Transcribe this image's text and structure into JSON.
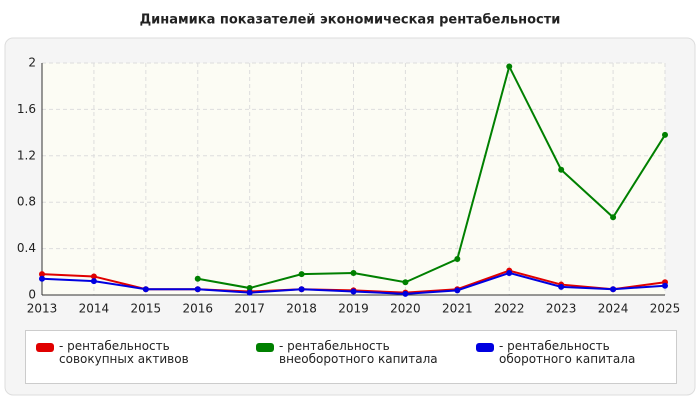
{
  "chart_data": {
    "type": "line",
    "title": "Динамика показателей экономическая рентабельности",
    "categories": [
      "2013",
      "2014",
      "2015",
      "2016",
      "2017",
      "2018",
      "2019",
      "2020",
      "2021",
      "2022",
      "2023",
      "2024",
      "2025"
    ],
    "series": [
      {
        "name": "- рентабельность совокупных активов",
        "color": "#e00000",
        "values": [
          0.18,
          0.16,
          0.05,
          0.05,
          0.03,
          0.05,
          0.04,
          0.02,
          0.05,
          0.21,
          0.09,
          0.05,
          0.11
        ]
      },
      {
        "name": "- рентабельность внеоборотного капитала",
        "color": "#008000",
        "values": [
          null,
          null,
          null,
          0.14,
          0.06,
          0.18,
          0.19,
          0.11,
          0.31,
          1.97,
          1.08,
          0.67,
          1.38
        ]
      },
      {
        "name": "- рентабельность оборотного капитала",
        "color": "#0000e0",
        "values": [
          0.14,
          0.12,
          0.05,
          0.05,
          0.02,
          0.05,
          0.03,
          0.01,
          0.04,
          0.19,
          0.07,
          0.05,
          0.08
        ]
      }
    ],
    "ylim": [
      0,
      2
    ],
    "yticks": [
      0,
      0.4,
      0.8,
      1.2,
      1.6,
      2
    ],
    "grid": true
  }
}
